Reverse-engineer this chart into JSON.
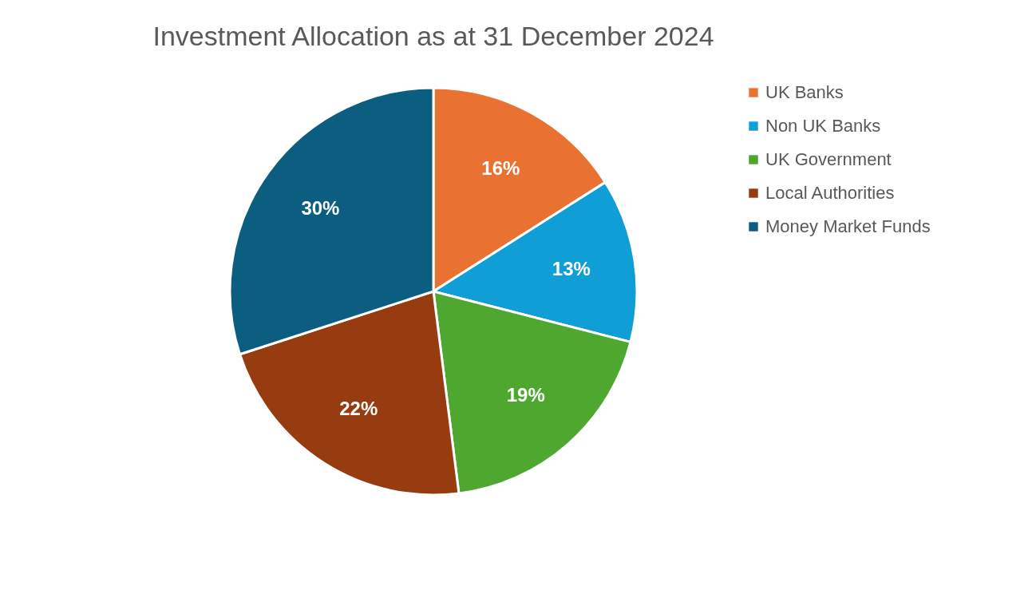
{
  "chart_data": {
    "type": "pie",
    "title": "Investment Allocation as at 31 December 2024",
    "categories": [
      "UK Banks",
      "Non UK Banks",
      "UK Government",
      "Local Authorities",
      "Money Market Funds"
    ],
    "values": [
      16,
      13,
      19,
      22,
      30
    ],
    "colors": [
      "#e97132",
      "#0f9ed5",
      "#4ea72e",
      "#963c10",
      "#0b5e80"
    ],
    "value_labels": [
      "16%",
      "13%",
      "19%",
      "22%",
      "30%"
    ],
    "legend": "right"
  }
}
